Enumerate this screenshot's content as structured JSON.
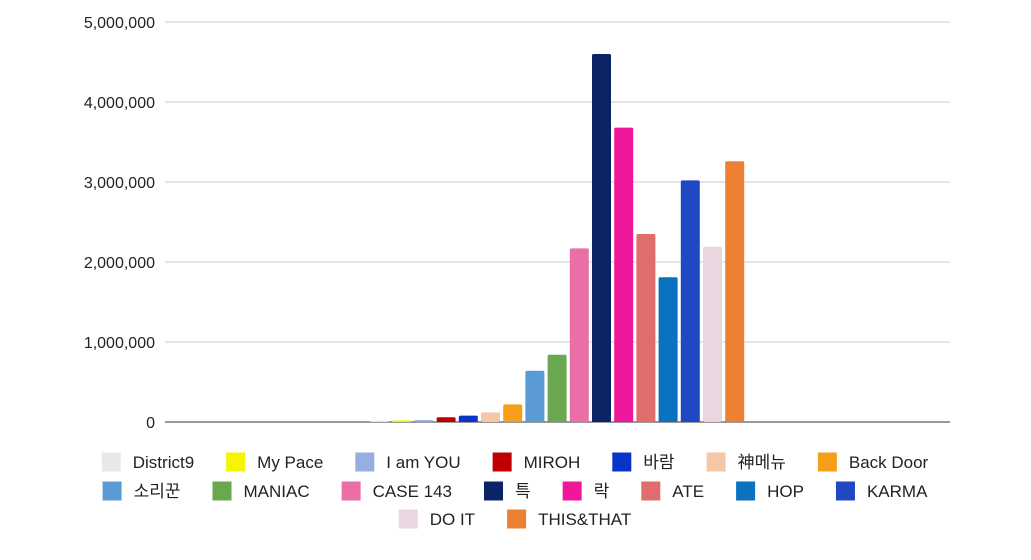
{
  "chart_data": {
    "type": "bar",
    "title": "",
    "xlabel": "",
    "ylabel": "",
    "ylim": [
      0,
      5000000
    ],
    "y_ticks": [
      "0",
      "1,000,000",
      "2,000,000",
      "3,000,000",
      "4,000,000",
      "5,000,000"
    ],
    "y_tick_values": [
      0,
      1000000,
      2000000,
      3000000,
      4000000,
      5000000
    ],
    "grid": true,
    "legend_position": "bottom",
    "series": [
      {
        "name": "District9",
        "value": 5000,
        "color": "#e8e8e8"
      },
      {
        "name": "My Pace",
        "value": 20000,
        "color": "#f5f500"
      },
      {
        "name": "I am YOU",
        "value": 25000,
        "color": "#97aee0"
      },
      {
        "name": "MIROH",
        "value": 60000,
        "color": "#c00000"
      },
      {
        "name": "바람",
        "value": 80000,
        "color": "#0a34c8"
      },
      {
        "name": "神메뉴",
        "value": 120000,
        "color": "#f4c7a6"
      },
      {
        "name": "Back Door",
        "value": 220000,
        "color": "#f59e1a"
      },
      {
        "name": "소리꾼",
        "value": 640000,
        "color": "#5b9bd5"
      },
      {
        "name": "MANIAC",
        "value": 840000,
        "color": "#6aa84f"
      },
      {
        "name": "CASE 143",
        "value": 2170000,
        "color": "#ea6fa6"
      },
      {
        "name": "특",
        "value": 4600000,
        "color": "#0b2466"
      },
      {
        "name": "락",
        "value": 3680000,
        "color": "#f0189a"
      },
      {
        "name": "ATE",
        "value": 2350000,
        "color": "#e06c6c"
      },
      {
        "name": "HOP",
        "value": 1810000,
        "color": "#0a72c0"
      },
      {
        "name": "KARMA",
        "value": 3020000,
        "color": "#1f48c2"
      },
      {
        "name": "DO IT",
        "value": 2190000,
        "color": "#ead6e0"
      },
      {
        "name": "THIS&THAT",
        "value": 3260000,
        "color": "#ee8033"
      }
    ],
    "legend_rows": [
      [
        0,
        1,
        2,
        3,
        4,
        5,
        6
      ],
      [
        7,
        8,
        9,
        10,
        11,
        12,
        13,
        14
      ],
      [
        15,
        16
      ]
    ]
  }
}
